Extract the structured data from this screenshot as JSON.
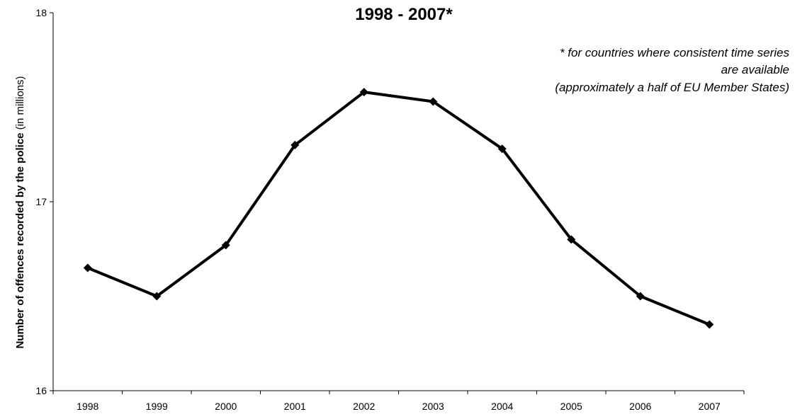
{
  "chart_data": {
    "type": "line",
    "title": "1998 - 2007*",
    "footnote_lines": [
      "* for countries where consistent time series",
      "are available",
      "(approximately a half of EU Member States)"
    ],
    "ylabel_bold": "Number of offences recorded by the police",
    "ylabel_unit": "(in millions)",
    "xlabel": "",
    "categories": [
      "1998",
      "1999",
      "2000",
      "2001",
      "2002",
      "2003",
      "2004",
      "2005",
      "2006",
      "2007"
    ],
    "series": [
      {
        "values": [
          16.65,
          16.5,
          16.77,
          17.3,
          17.58,
          17.53,
          17.28,
          16.8,
          16.5,
          16.35
        ]
      }
    ],
    "ylim": [
      16,
      18
    ],
    "yticks": [
      "16",
      "17",
      "18"
    ],
    "grid": false,
    "line_color": "#000000",
    "marker": "diamond"
  }
}
